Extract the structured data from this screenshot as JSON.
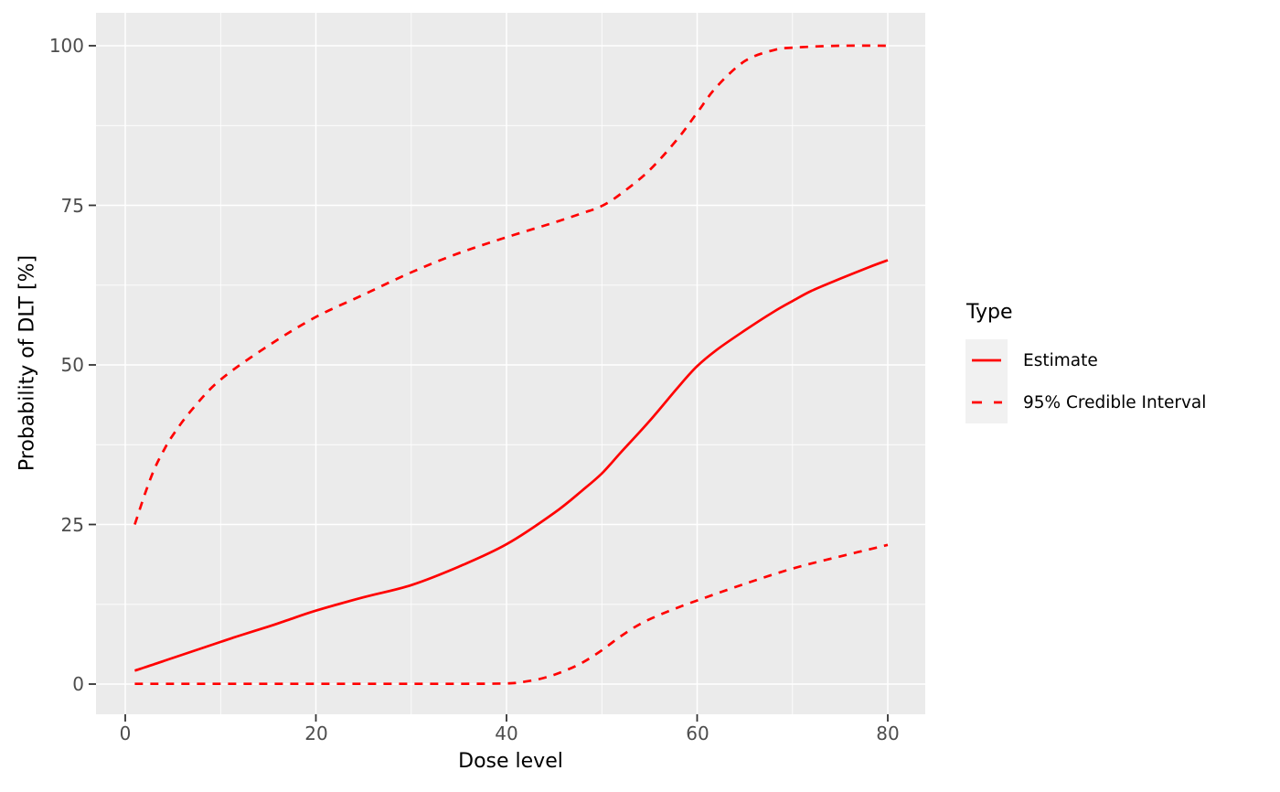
{
  "chart": {
    "legend": {
      "title": "Type",
      "items": [
        {
          "label": "Estimate",
          "line_style": "solid",
          "color": "#FF0000"
        },
        {
          "label": "95% Credible Interval",
          "line_style": "dashed",
          "color": "#FF0000"
        }
      ]
    }
  },
  "chart_data": {
    "type": "line",
    "title": "",
    "xlabel": "Dose level",
    "ylabel": "Probability of DLT [%]",
    "xlim": [
      1,
      80
    ],
    "ylim": [
      0,
      100
    ],
    "x_ticks": [
      0,
      20,
      40,
      60,
      80
    ],
    "x_tick_labels": [
      "0",
      "20",
      "40",
      "60",
      "80"
    ],
    "x_minor_ticks": [
      10,
      30,
      50,
      70
    ],
    "y_ticks": [
      0,
      25,
      50,
      75,
      100
    ],
    "y_tick_labels": [
      "0",
      "25",
      "50",
      "75",
      "100"
    ],
    "y_minor_ticks": [
      12.5,
      37.5,
      62.5,
      87.5
    ],
    "grid": true,
    "legend_position": "right",
    "series": [
      {
        "name": "Estimate",
        "style": "solid",
        "color": "#FF0000",
        "x": [
          1,
          2,
          3,
          4,
          5,
          7,
          10,
          12,
          15,
          17,
          20,
          25,
          30,
          35,
          40,
          45,
          48,
          50,
          52,
          55,
          58,
          60,
          62,
          65,
          68,
          70,
          72,
          75,
          78,
          80
        ],
        "y": [
          2.1,
          2.6,
          3.1,
          3.6,
          4.1,
          5.1,
          6.6,
          7.6,
          9.0,
          10.0,
          11.5,
          13.6,
          15.5,
          18.4,
          21.9,
          26.8,
          30.4,
          33.0,
          36.3,
          41.2,
          46.5,
          49.8,
          52.3,
          55.4,
          58.3,
          60.0,
          61.6,
          63.5,
          65.3,
          66.4
        ]
      },
      {
        "name": "95% Credible Interval (upper)",
        "style": "dashed",
        "color": "#FF0000",
        "x": [
          1,
          2,
          3,
          4,
          5,
          7,
          10,
          15,
          20,
          25,
          30,
          35,
          40,
          45,
          48,
          50,
          52,
          55,
          58,
          60,
          62,
          65,
          68,
          70,
          75,
          80
        ],
        "y": [
          25.0,
          29.5,
          33.5,
          36.5,
          39.0,
          43.0,
          47.7,
          53.0,
          57.5,
          61.0,
          64.5,
          67.5,
          70.0,
          72.3,
          73.8,
          74.9,
          76.8,
          80.5,
          85.5,
          89.5,
          93.5,
          97.6,
          99.3,
          99.7,
          100.0,
          100.0
        ]
      },
      {
        "name": "95% Credible Interval (lower)",
        "style": "dashed",
        "color": "#FF0000",
        "x": [
          1,
          5,
          10,
          15,
          20,
          25,
          30,
          35,
          40,
          42,
          44,
          46,
          48,
          50,
          52,
          54,
          56,
          58,
          60,
          65,
          70,
          75,
          80
        ],
        "y": [
          0.05,
          0.05,
          0.05,
          0.05,
          0.05,
          0.05,
          0.05,
          0.05,
          0.1,
          0.4,
          1.0,
          2.0,
          3.4,
          5.3,
          7.5,
          9.4,
          10.8,
          12.0,
          13.1,
          15.7,
          18.1,
          20.0,
          21.8
        ]
      }
    ]
  },
  "colors": {
    "line": "#FF0000",
    "panel_background": "#EBEBEB",
    "grid": "#FFFFFF",
    "tick_mark": "#333333",
    "tick_label": "#4D4D4D",
    "axis_title": "#000000",
    "legend_key_background": "#F1F1F1"
  }
}
